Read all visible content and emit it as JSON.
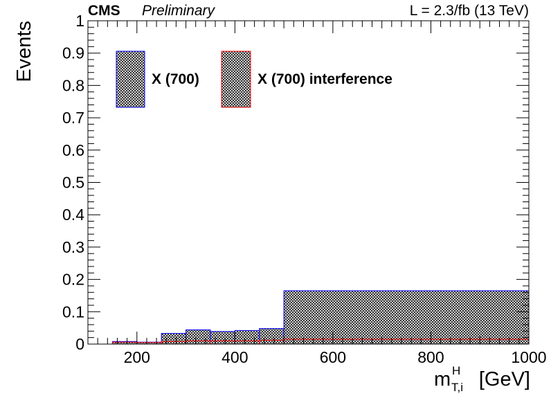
{
  "header": {
    "experiment": "CMS",
    "status": "Preliminary",
    "lumi": "L = 2.3/fb (13 TeV)"
  },
  "chart_data": {
    "type": "bar",
    "subtype": "histogram",
    "xlabel_main": "m",
    "xlabel_sup": "H",
    "xlabel_sub": "T,i",
    "xlabel_unit": "[GeV]",
    "ylabel": "Events",
    "xlim": [
      100,
      1000
    ],
    "ylim": [
      0,
      1
    ],
    "xticks": [
      200,
      400,
      600,
      800,
      1000
    ],
    "yticks": [
      0,
      0.1,
      0.2,
      0.3,
      0.4,
      0.5,
      0.6,
      0.7,
      0.8,
      0.9,
      1
    ],
    "ytick_labels": [
      "0",
      "0.1",
      "0.2",
      "0.3",
      "0.4",
      "0.5",
      "0.6",
      "0.7",
      "0.8",
      "0.9",
      "1"
    ],
    "bin_edges": [
      150,
      200,
      250,
      300,
      350,
      400,
      450,
      500,
      1000
    ],
    "series": [
      {
        "name": "X (700)",
        "color": "#0000ff",
        "values": [
          0.008,
          0.006,
          0.033,
          0.044,
          0.039,
          0.042,
          0.048,
          0.165
        ]
      },
      {
        "name": "X (700) interference",
        "color": "#ff0000",
        "values": [
          0.006,
          0.005,
          0.008,
          0.01,
          0.01,
          0.01,
          0.012,
          0.015
        ]
      }
    ],
    "legend_position": "top-left",
    "grid": false
  }
}
